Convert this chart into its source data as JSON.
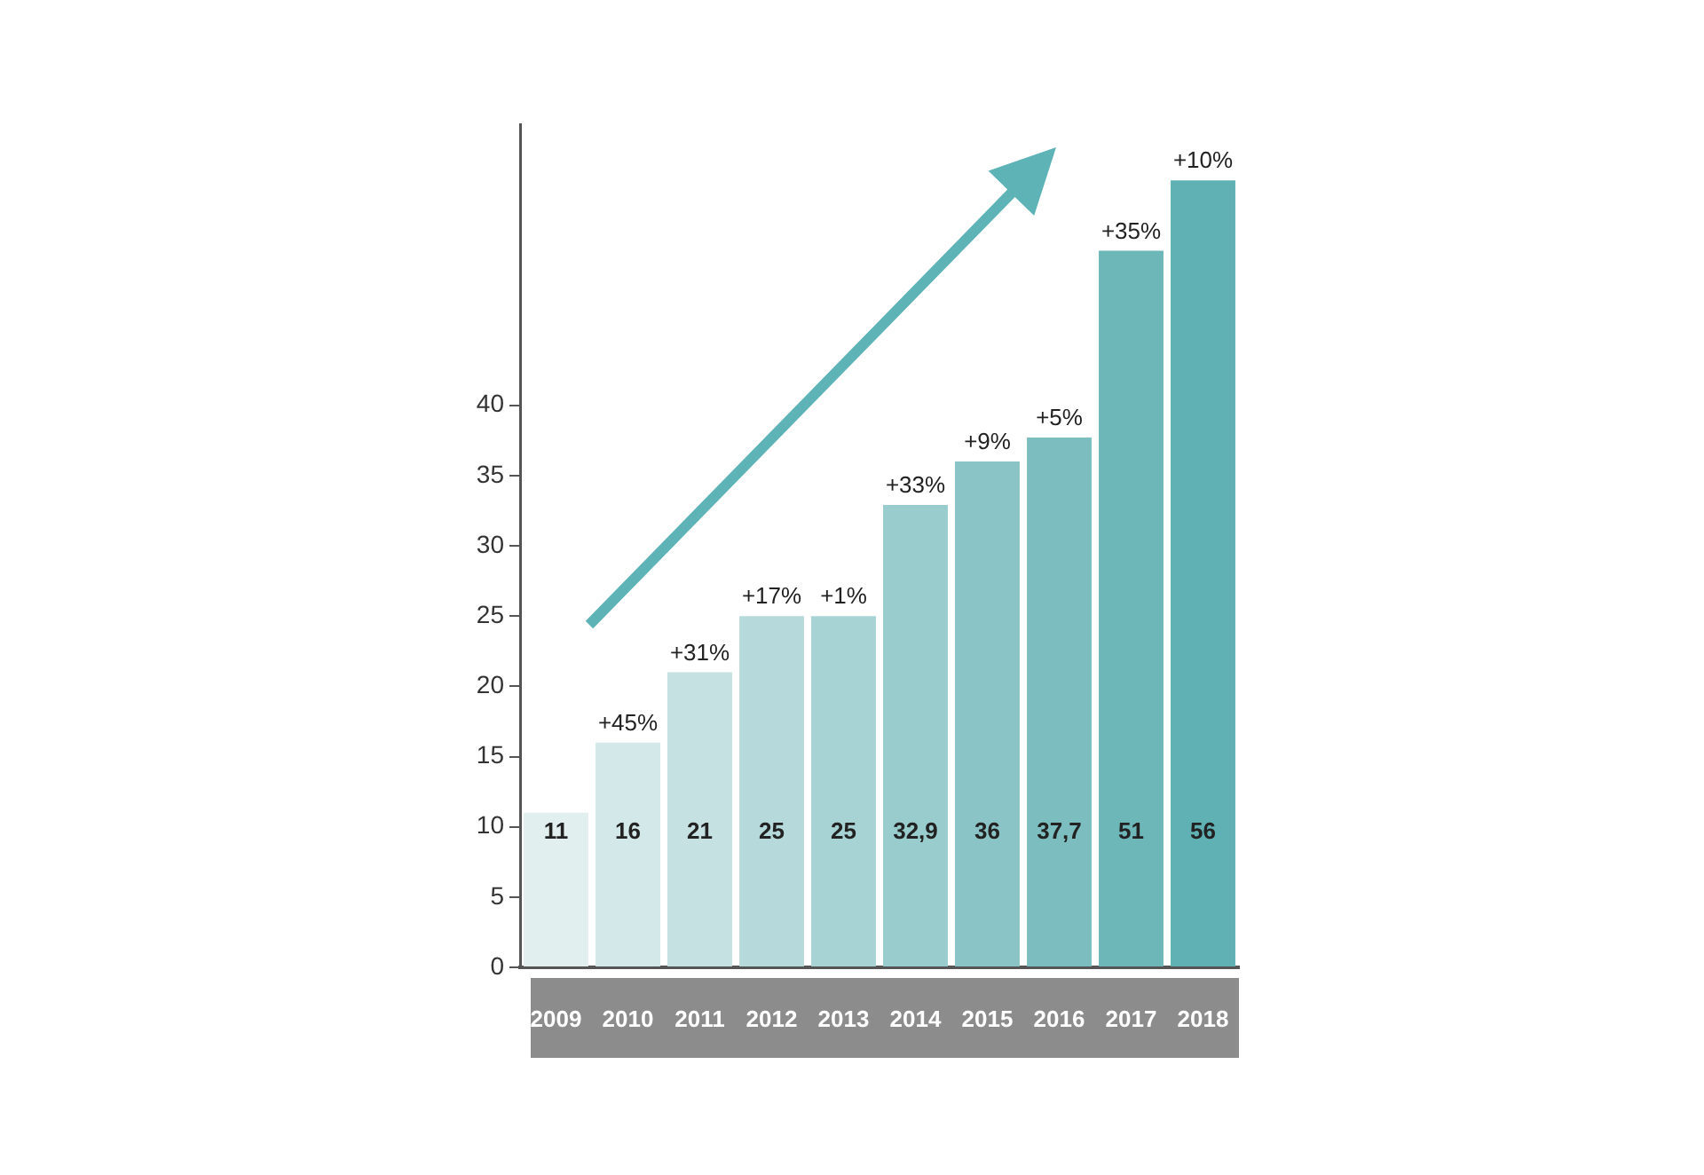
{
  "chart_data": {
    "type": "bar",
    "categories": [
      "2009",
      "2010",
      "2011",
      "2012",
      "2013",
      "2014",
      "2015",
      "2016",
      "2017",
      "2018"
    ],
    "values": [
      11,
      16,
      21,
      25,
      25,
      32.9,
      36,
      37.7,
      51,
      56
    ],
    "value_labels": [
      "11",
      "16",
      "21",
      "25",
      "25",
      "32,9",
      "36",
      "37,7",
      "51",
      "56"
    ],
    "colors": [
      "#e2efef",
      "#d3e8e8",
      "#c5e1e2",
      "#b6dadb",
      "#a8d3d4",
      "#99cccd",
      "#8ac4c6",
      "#7cbec0",
      "#6db7b9",
      "#5fb1b4"
    ],
    "annotations": [
      {
        "text": "+45%",
        "x": "2010",
        "y": 16
      },
      {
        "text": "+31%",
        "x": "2011",
        "y": 21
      },
      {
        "text": "+17%",
        "x": "2012",
        "y": 25
      },
      {
        "text": "+1%",
        "x": "2013",
        "y": 25
      },
      {
        "text": "+33%",
        "x": "2014",
        "y": 32.9
      },
      {
        "text": "+9%",
        "x": "2015",
        "y": 36
      },
      {
        "text": "+5%",
        "x": "2016",
        "y": 37.7
      },
      {
        "text": "+35%",
        "x": "2017",
        "y": 51
      },
      {
        "text": "+10%",
        "x": "2018",
        "y": 56
      }
    ],
    "ylim": [
      0,
      60
    ],
    "yticks": [
      0,
      5,
      10,
      15,
      20,
      25,
      30,
      35,
      40
    ],
    "grid": false,
    "legend": false
  }
}
